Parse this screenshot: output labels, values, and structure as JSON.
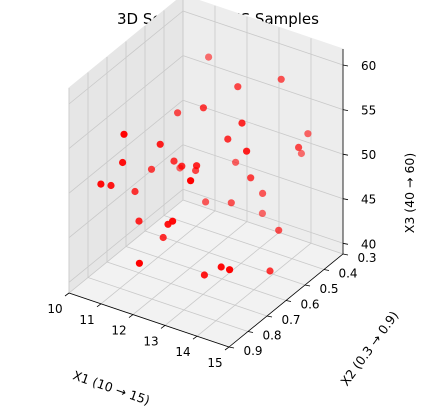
{
  "chart_data": {
    "type": "scatter",
    "title": "3D Scatter of LHS Samples",
    "xlabel": "X1 (10 → 15)",
    "ylabel": "X2 (0.3 → 0.9)",
    "zlabel": "X3 (40 → 60)",
    "xlim": [
      10,
      15
    ],
    "ylim": [
      0.3,
      0.9
    ],
    "zlim": [
      40,
      60
    ],
    "xticks": [
      "10",
      "11",
      "12",
      "13",
      "14",
      "15"
    ],
    "yticks": [
      "0.3",
      "0.4",
      "0.5",
      "0.6",
      "0.7",
      "0.8",
      "0.9"
    ],
    "zticks": [
      "40",
      "45",
      "50",
      "55",
      "60"
    ],
    "grid": true,
    "color": "#ff0000",
    "points": [
      {
        "x": 10.2,
        "y": 0.35,
        "z": 43.5
      },
      {
        "x": 10.4,
        "y": 0.62,
        "z": 45.8
      },
      {
        "x": 10.5,
        "y": 0.55,
        "z": 47.2
      },
      {
        "x": 10.6,
        "y": 0.78,
        "z": 49.5
      },
      {
        "x": 10.7,
        "y": 0.85,
        "z": 51.0
      },
      {
        "x": 10.9,
        "y": 0.48,
        "z": 52.8
      },
      {
        "x": 11.0,
        "y": 0.7,
        "z": 44.6
      },
      {
        "x": 11.2,
        "y": 0.82,
        "z": 53.5
      },
      {
        "x": 11.3,
        "y": 0.4,
        "z": 41.9
      },
      {
        "x": 11.5,
        "y": 0.6,
        "z": 50.2
      },
      {
        "x": 11.6,
        "y": 0.88,
        "z": 58.2
      },
      {
        "x": 11.7,
        "y": 0.52,
        "z": 48.0
      },
      {
        "x": 11.9,
        "y": 0.74,
        "z": 55.0
      },
      {
        "x": 12.0,
        "y": 0.36,
        "z": 46.5
      },
      {
        "x": 12.1,
        "y": 0.66,
        "z": 51.4
      },
      {
        "x": 12.3,
        "y": 0.58,
        "z": 56.8
      },
      {
        "x": 12.4,
        "y": 0.45,
        "z": 44.0
      },
      {
        "x": 12.5,
        "y": 0.8,
        "z": 47.8
      },
      {
        "x": 12.6,
        "y": 0.32,
        "z": 40.8
      },
      {
        "x": 12.8,
        "y": 0.7,
        "z": 53.0
      },
      {
        "x": 12.9,
        "y": 0.5,
        "z": 58.5
      },
      {
        "x": 13.0,
        "y": 0.86,
        "z": 49.8
      },
      {
        "x": 13.2,
        "y": 0.42,
        "z": 45.5
      },
      {
        "x": 13.3,
        "y": 0.62,
        "z": 55.2
      },
      {
        "x": 13.4,
        "y": 0.76,
        "z": 42.5
      },
      {
        "x": 13.6,
        "y": 0.55,
        "z": 50.0
      },
      {
        "x": 13.7,
        "y": 0.3,
        "z": 48.5
      },
      {
        "x": 13.8,
        "y": 0.9,
        "z": 56.0
      },
      {
        "x": 14.0,
        "y": 0.47,
        "z": 43.2
      },
      {
        "x": 14.1,
        "y": 0.68,
        "z": 59.0
      },
      {
        "x": 14.2,
        "y": 0.35,
        "z": 52.2
      },
      {
        "x": 14.4,
        "y": 0.84,
        "z": 46.0
      },
      {
        "x": 14.5,
        "y": 0.6,
        "z": 41.5
      },
      {
        "x": 14.6,
        "y": 0.74,
        "z": 57.5
      },
      {
        "x": 14.8,
        "y": 0.5,
        "z": 54.0
      },
      {
        "x": 14.9,
        "y": 0.88,
        "z": 47.0
      },
      {
        "x": 10.8,
        "y": 0.3,
        "z": 55.8
      },
      {
        "x": 12.2,
        "y": 0.9,
        "z": 44.8
      },
      {
        "x": 13.9,
        "y": 0.44,
        "z": 59.5
      },
      {
        "x": 11.4,
        "y": 0.64,
        "z": 42.2
      }
    ]
  }
}
